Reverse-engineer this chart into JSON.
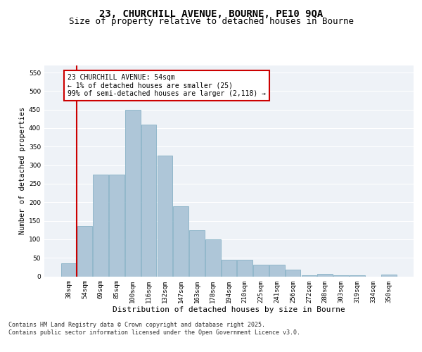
{
  "title": "23, CHURCHILL AVENUE, BOURNE, PE10 9QA",
  "subtitle": "Size of property relative to detached houses in Bourne",
  "xlabel": "Distribution of detached houses by size in Bourne",
  "ylabel": "Number of detached properties",
  "categories": [
    "38sqm",
    "54sqm",
    "69sqm",
    "85sqm",
    "100sqm",
    "116sqm",
    "132sqm",
    "147sqm",
    "163sqm",
    "178sqm",
    "194sqm",
    "210sqm",
    "225sqm",
    "241sqm",
    "256sqm",
    "272sqm",
    "288sqm",
    "303sqm",
    "319sqm",
    "334sqm",
    "350sqm"
  ],
  "values": [
    35,
    135,
    275,
    275,
    450,
    410,
    325,
    190,
    125,
    100,
    45,
    45,
    32,
    32,
    18,
    3,
    7,
    2,
    2,
    0,
    5
  ],
  "bar_color": "#aec6d8",
  "bar_edge_color": "#7aaabf",
  "vline_x_index": 1,
  "vline_color": "#cc0000",
  "annotation_text": "23 CHURCHILL AVENUE: 54sqm\n← 1% of detached houses are smaller (25)\n99% of semi-detached houses are larger (2,118) →",
  "annotation_box_color": "#cc0000",
  "ylim": [
    0,
    570
  ],
  "yticks": [
    0,
    50,
    100,
    150,
    200,
    250,
    300,
    350,
    400,
    450,
    500,
    550
  ],
  "background_color": "#eef2f7",
  "grid_color": "#ffffff",
  "footer": "Contains HM Land Registry data © Crown copyright and database right 2025.\nContains public sector information licensed under the Open Government Licence v3.0.",
  "title_fontsize": 10,
  "subtitle_fontsize": 9,
  "xlabel_fontsize": 8,
  "ylabel_fontsize": 7.5,
  "tick_fontsize": 6.5,
  "annotation_fontsize": 7,
  "footer_fontsize": 6
}
